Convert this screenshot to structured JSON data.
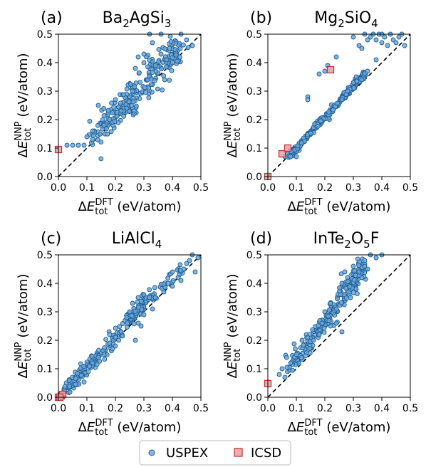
{
  "legend": {
    "items": [
      {
        "label": "USPEX",
        "marker": "circle",
        "fill": "#6fa8d6",
        "edge": "#1f5f99"
      },
      {
        "label": "ICSD",
        "marker": "square",
        "fill": "#e8a0a4",
        "edge": "#c4363c"
      }
    ]
  },
  "axis_text": {
    "x_symbol": "ΔE",
    "x_sub": "tot",
    "x_sup": "DFT",
    "x_unit": " (eV/atom)",
    "y_symbol": "ΔE",
    "y_sub": "tot",
    "y_sup": "NNP",
    "y_unit": " (eV/atom)"
  },
  "chart_data": [
    {
      "type": "scatter",
      "panel_label": "(a)",
      "title": [
        {
          "t": "Ba"
        },
        {
          "t": "2",
          "sub": true
        },
        {
          "t": "AgSi"
        },
        {
          "t": "3",
          "sub": true
        }
      ],
      "xlim": [
        0,
        0.5
      ],
      "ylim": [
        0,
        0.5
      ],
      "xticks": [
        "0.0",
        "0.1",
        "0.2",
        "0.3",
        "0.4",
        "0.5"
      ],
      "yticks": [
        "0.0",
        "0.1",
        "0.2",
        "0.3",
        "0.4",
        "0.5"
      ],
      "reference_line": "y = x (dashed)",
      "uspex_cloud": {
        "x_range": [
          0.05,
          0.47
        ],
        "centers": [
          [
            0.13,
            0.15
          ],
          [
            0.2,
            0.22
          ],
          [
            0.25,
            0.27
          ],
          [
            0.3,
            0.33
          ],
          [
            0.37,
            0.4
          ],
          [
            0.44,
            0.46
          ]
        ],
        "spread": 0.025
      },
      "series": [
        {
          "name": "USPEX",
          "points": [
            [
              0.03,
              0.11
            ],
            [
              0.05,
              0.11
            ],
            [
              0.07,
              0.11
            ],
            [
              0.09,
              0.11
            ],
            [
              0.1,
              0.14
            ],
            [
              0.12,
              0.16
            ],
            [
              0.14,
              0.25
            ],
            [
              0.12,
              0.13
            ],
            [
              0.16,
              0.18
            ],
            [
              0.18,
              0.2
            ],
            [
              0.2,
              0.27
            ],
            [
              0.22,
              0.23
            ],
            [
              0.24,
              0.24
            ],
            [
              0.26,
              0.3
            ],
            [
              0.27,
              0.38
            ],
            [
              0.3,
              0.43
            ],
            [
              0.33,
              0.47
            ],
            [
              0.36,
              0.43
            ],
            [
              0.38,
              0.41
            ],
            [
              0.39,
              0.45
            ],
            [
              0.4,
              0.4
            ],
            [
              0.43,
              0.5
            ],
            [
              0.45,
              0.48
            ],
            [
              0.47,
              0.46
            ],
            [
              0.32,
              0.5
            ],
            [
              0.28,
              0.42
            ],
            [
              0.36,
              0.5
            ],
            [
              0.3,
              0.4
            ],
            [
              0.34,
              0.39
            ]
          ]
        },
        {
          "name": "ICSD",
          "points": [
            [
              0.0,
              0.095
            ]
          ]
        }
      ]
    },
    {
      "type": "scatter",
      "panel_label": "(b)",
      "title": [
        {
          "t": "Mg"
        },
        {
          "t": "2",
          "sub": true
        },
        {
          "t": "SiO"
        },
        {
          "t": "4",
          "sub": true
        }
      ],
      "xlim": [
        0,
        0.5
      ],
      "ylim": [
        0,
        0.5
      ],
      "xticks": [
        "0.0",
        "0.1",
        "0.2",
        "0.3",
        "0.4",
        "0.5"
      ],
      "yticks": [
        "0.0",
        "0.1",
        "0.2",
        "0.3",
        "0.4",
        "0.5"
      ],
      "reference_line": "y = x (dashed)",
      "uspex_cloud": {
        "x_range": [
          0.04,
          0.35
        ],
        "centers": [
          [
            0.07,
            0.07
          ],
          [
            0.12,
            0.12
          ],
          [
            0.18,
            0.19
          ],
          [
            0.24,
            0.25
          ],
          [
            0.3,
            0.32
          ],
          [
            0.34,
            0.36
          ]
        ],
        "spread": 0.006
      },
      "series": [
        {
          "name": "USPEX",
          "points": [
            [
              0.06,
              0.07
            ],
            [
              0.08,
              0.07
            ],
            [
              0.1,
              0.07
            ],
            [
              0.14,
              0.28
            ],
            [
              0.14,
              0.27
            ],
            [
              0.18,
              0.36
            ],
            [
              0.2,
              0.37
            ],
            [
              0.21,
              0.39
            ],
            [
              0.24,
              0.42
            ],
            [
              0.3,
              0.33
            ],
            [
              0.28,
              0.3
            ],
            [
              0.26,
              0.27
            ],
            [
              0.31,
              0.35
            ],
            [
              0.33,
              0.34
            ],
            [
              0.35,
              0.37
            ],
            [
              0.38,
              0.41
            ],
            [
              0.3,
              0.49
            ],
            [
              0.32,
              0.46
            ],
            [
              0.33,
              0.45
            ],
            [
              0.34,
              0.5
            ],
            [
              0.36,
              0.49
            ],
            [
              0.38,
              0.48
            ],
            [
              0.39,
              0.5
            ],
            [
              0.4,
              0.47
            ],
            [
              0.41,
              0.49
            ],
            [
              0.42,
              0.46
            ],
            [
              0.43,
              0.5
            ],
            [
              0.44,
              0.48
            ],
            [
              0.45,
              0.47
            ],
            [
              0.46,
              0.49
            ],
            [
              0.47,
              0.5
            ],
            [
              0.48,
              0.46
            ],
            [
              0.35,
              0.48
            ],
            [
              0.37,
              0.5
            ],
            [
              0.4,
              0.5
            ]
          ]
        },
        {
          "name": "ICSD",
          "points": [
            [
              0.0,
              0.0
            ],
            [
              0.05,
              0.08
            ],
            [
              0.07,
              0.1
            ],
            [
              0.22,
              0.375
            ]
          ]
        }
      ]
    },
    {
      "type": "scatter",
      "panel_label": "(c)",
      "title": [
        {
          "t": "LiAlCl"
        },
        {
          "t": "4",
          "sub": true
        }
      ],
      "xlim": [
        0,
        0.5
      ],
      "ylim": [
        0,
        0.5
      ],
      "xticks": [
        "0.0",
        "0.1",
        "0.2",
        "0.3",
        "0.4",
        "0.5"
      ],
      "yticks": [
        "0.0",
        "0.1",
        "0.2",
        "0.3",
        "0.4",
        "0.5"
      ],
      "reference_line": "y = x (dashed)",
      "uspex_cloud": {
        "x_range": [
          0.0,
          0.48
        ],
        "centers": [
          [
            0.02,
            0.02
          ],
          [
            0.06,
            0.06
          ],
          [
            0.1,
            0.1
          ],
          [
            0.15,
            0.15
          ],
          [
            0.24,
            0.26
          ],
          [
            0.27,
            0.3
          ],
          [
            0.3,
            0.33
          ],
          [
            0.44,
            0.46
          ]
        ],
        "spread": 0.012
      },
      "series": [
        {
          "name": "USPEX",
          "points": [
            [
              0.12,
              0.12
            ],
            [
              0.14,
              0.14
            ],
            [
              0.16,
              0.15
            ],
            [
              0.18,
              0.19
            ],
            [
              0.2,
              0.21
            ],
            [
              0.22,
              0.23
            ],
            [
              0.24,
              0.28
            ],
            [
              0.25,
              0.3
            ],
            [
              0.26,
              0.33
            ],
            [
              0.28,
              0.35
            ],
            [
              0.3,
              0.36
            ],
            [
              0.32,
              0.35
            ],
            [
              0.3,
              0.29
            ],
            [
              0.28,
              0.26
            ],
            [
              0.34,
              0.35
            ],
            [
              0.37,
              0.37
            ],
            [
              0.4,
              0.39
            ],
            [
              0.42,
              0.42
            ],
            [
              0.44,
              0.45
            ],
            [
              0.46,
              0.48
            ],
            [
              0.47,
              0.5
            ],
            [
              0.48,
              0.44
            ],
            [
              0.43,
              0.41
            ],
            [
              0.45,
              0.47
            ],
            [
              0.49,
              0.49
            ],
            [
              0.4,
              0.44
            ],
            [
              0.33,
              0.31
            ],
            [
              0.27,
              0.2
            ],
            [
              0.29,
              0.25
            ],
            [
              0.18,
              0.22
            ],
            [
              0.2,
              0.18
            ]
          ]
        },
        {
          "name": "ICSD",
          "points": [
            [
              0.0,
              0.0
            ],
            [
              0.01,
              0.005
            ],
            [
              0.015,
              0.01
            ],
            [
              0.005,
              0.0
            ]
          ]
        }
      ]
    },
    {
      "type": "scatter",
      "panel_label": "(d)",
      "title": [
        {
          "t": "InTe"
        },
        {
          "t": "2",
          "sub": true
        },
        {
          "t": "O"
        },
        {
          "t": "5",
          "sub": true
        },
        {
          "t": "F"
        }
      ],
      "xlim": [
        0,
        0.5
      ],
      "ylim": [
        0,
        0.5
      ],
      "xticks": [
        "0.0",
        "0.1",
        "0.2",
        "0.3",
        "0.4",
        "0.5"
      ],
      "yticks": [
        "0.0",
        "0.1",
        "0.2",
        "0.3",
        "0.4",
        "0.5"
      ],
      "reference_line": "y = x (dashed)",
      "uspex_cloud": {
        "x_range": [
          0.04,
          0.4
        ],
        "centers": [
          [
            0.07,
            0.11
          ],
          [
            0.12,
            0.16
          ],
          [
            0.18,
            0.24
          ],
          [
            0.21,
            0.28
          ],
          [
            0.27,
            0.37
          ],
          [
            0.3,
            0.41
          ],
          [
            0.33,
            0.46
          ]
        ],
        "spread": 0.018
      },
      "series": [
        {
          "name": "USPEX",
          "points": [
            [
              0.04,
              0.08
            ],
            [
              0.05,
              0.1
            ],
            [
              0.06,
              0.07
            ],
            [
              0.08,
              0.12
            ],
            [
              0.1,
              0.15
            ],
            [
              0.12,
              0.2
            ],
            [
              0.14,
              0.21
            ],
            [
              0.16,
              0.2
            ],
            [
              0.18,
              0.22
            ],
            [
              0.2,
              0.3
            ],
            [
              0.22,
              0.33
            ],
            [
              0.24,
              0.31
            ],
            [
              0.26,
              0.4
            ],
            [
              0.28,
              0.42
            ],
            [
              0.3,
              0.46
            ],
            [
              0.32,
              0.44
            ],
            [
              0.34,
              0.48
            ],
            [
              0.36,
              0.5
            ],
            [
              0.38,
              0.49
            ],
            [
              0.4,
              0.5
            ],
            [
              0.24,
              0.26
            ],
            [
              0.26,
              0.23
            ],
            [
              0.29,
              0.35
            ],
            [
              0.31,
              0.38
            ],
            [
              0.33,
              0.42
            ],
            [
              0.35,
              0.45
            ],
            [
              0.22,
              0.25
            ],
            [
              0.19,
              0.26
            ],
            [
              0.27,
              0.44
            ]
          ]
        },
        {
          "name": "ICSD",
          "points": [
            [
              0.0,
              0.048
            ]
          ]
        }
      ]
    }
  ]
}
